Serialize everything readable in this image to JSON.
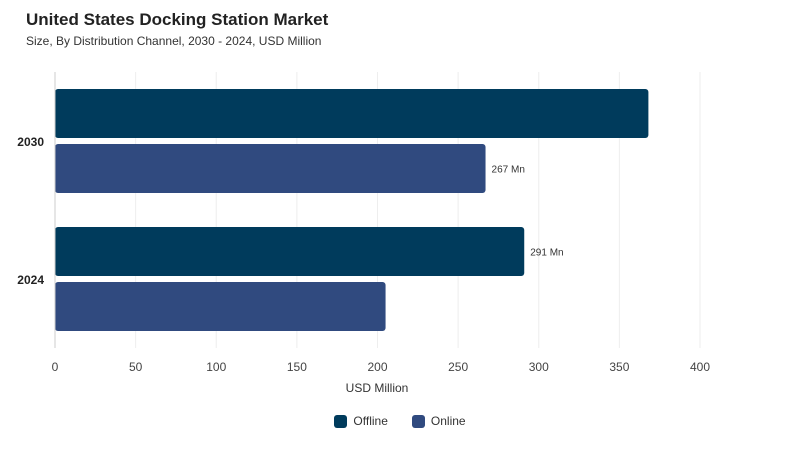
{
  "title": "United States Docking Station Market",
  "subtitle": "Size, By Distribution Channel, 2030 - 2024, USD Million",
  "chart_data": {
    "type": "bar",
    "orientation": "horizontal",
    "categories": [
      "2030",
      "2024"
    ],
    "series": [
      {
        "name": "Offline",
        "color": "#003b5c",
        "values": [
          368,
          291
        ]
      },
      {
        "name": "Online",
        "color": "#304a7f",
        "values": [
          267,
          205
        ]
      }
    ],
    "data_labels": [
      {
        "series": "Online",
        "category": "2030",
        "text": "267 Mn"
      },
      {
        "series": "Offline",
        "category": "2024",
        "text": "291 Mn"
      }
    ],
    "xlabel": "USD Million",
    "ylabel": "",
    "xlim": [
      0,
      400
    ],
    "xticks": [
      "0",
      "50",
      "100",
      "150",
      "200",
      "250",
      "300",
      "350",
      "400"
    ],
    "grid": true,
    "legend_position": "bottom-center"
  }
}
